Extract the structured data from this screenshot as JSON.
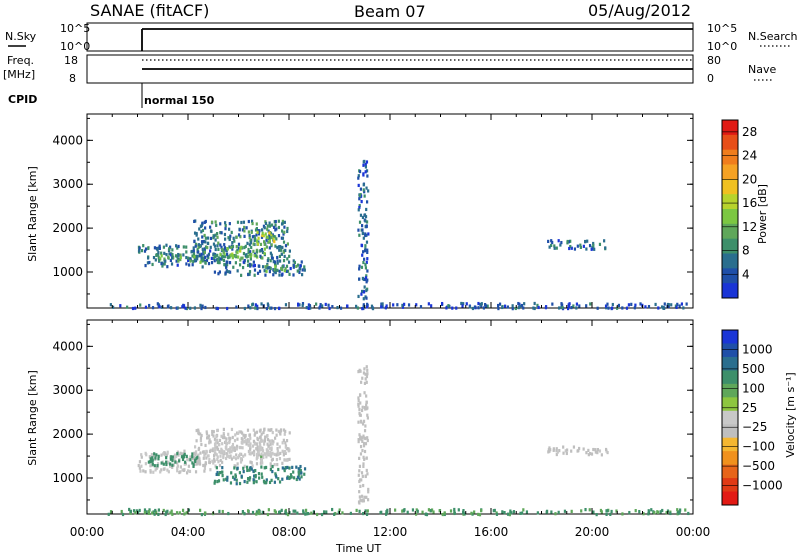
{
  "header": {
    "station": "SANAE (fitACF)",
    "beam": "Beam 07",
    "date": "05/Aug/2012"
  },
  "status_panels": {
    "nsky": {
      "label": "N.Sky",
      "left_ticks": [
        "10^5",
        "10^0"
      ],
      "right_ticks": [
        "10^5",
        "10^0"
      ],
      "right_label": "N.Search",
      "right_label_style": "dotted"
    },
    "freq": {
      "label_line1": "Freq.",
      "label_line2": "[MHz]",
      "left_ticks": [
        "18",
        "8"
      ],
      "right_ticks": [
        "80",
        "0"
      ],
      "right_label": "Nave",
      "right_label_style": "dotted"
    },
    "cpid": {
      "label": "CPID",
      "value": "normal 150"
    }
  },
  "colors": {
    "power_scale": [
      "#1a35d6",
      "#1f4fa8",
      "#2a6e8e",
      "#3d8f6a",
      "#5fa75a",
      "#7cc742",
      "#b7d32c",
      "#f0c020",
      "#f5a223",
      "#f07d1c",
      "#e84e18",
      "#e01a14"
    ],
    "velocity_scale": [
      "#1a35d6",
      "#1f4fa8",
      "#2a6e8e",
      "#3d8f6a",
      "#5fa75a",
      "#8dc63f",
      "#c8c8c8",
      "#bfbfbf",
      "#f5b731",
      "#f0911d",
      "#e7651a",
      "#e03a15",
      "#e21a14"
    ]
  },
  "chart_data": [
    {
      "type": "heatmap",
      "name": "power",
      "ylabel": "Slant Range [km]",
      "yticks": [
        "1000",
        "2000",
        "3000",
        "4000"
      ],
      "ylim": [
        180,
        4600
      ],
      "xlim": [
        0,
        24
      ],
      "colorbar_label": "Power [dB]",
      "colorbar_ticks": [
        "4",
        "8",
        "12",
        "16",
        "20",
        "24",
        "28"
      ],
      "colorbar_range": [
        0,
        30
      ],
      "regions": [
        {
          "x": [
            2.0,
            5.2
          ],
          "y": [
            1150,
            1650
          ],
          "value": 6
        },
        {
          "x": [
            2.8,
            4.6
          ],
          "y": [
            1250,
            1450
          ],
          "value": 10
        },
        {
          "x": [
            4.2,
            8.0
          ],
          "y": [
            1300,
            2200
          ],
          "value": 7
        },
        {
          "x": [
            6.6,
            7.4
          ],
          "y": [
            1650,
            1950
          ],
          "value": 14
        },
        {
          "x": [
            5.2,
            7.0
          ],
          "y": [
            1350,
            1600
          ],
          "value": 12
        },
        {
          "x": [
            5.0,
            8.6
          ],
          "y": [
            950,
            1300
          ],
          "value": 6
        },
        {
          "x": [
            7.0,
            8.4
          ],
          "y": [
            1050,
            1200
          ],
          "value": 11
        },
        {
          "x": [
            10.7,
            11.1
          ],
          "y": [
            400,
            3600
          ],
          "value": 5
        },
        {
          "x": [
            18.2,
            20.6
          ],
          "y": [
            1550,
            1750
          ],
          "value": 5
        },
        {
          "x": [
            0.8,
            23.8
          ],
          "y": [
            200,
            320
          ],
          "value": 4
        }
      ]
    },
    {
      "type": "heatmap",
      "name": "velocity",
      "ylabel": "Slant Range [km]",
      "yticks": [
        "1000",
        "2000",
        "3000",
        "4000"
      ],
      "ylim": [
        180,
        4600
      ],
      "xlim": [
        0,
        24
      ],
      "xticks": [
        "00:00",
        "04:00",
        "08:00",
        "12:00",
        "16:00",
        "20:00",
        "00:00"
      ],
      "xlabel": "Time UT",
      "colorbar_label": "Velocity [m s⁻¹]",
      "colorbar_ticks": [
        "1000",
        "500",
        "100",
        "25",
        "−25",
        "−100",
        "−500",
        "−1000"
      ],
      "regions": [
        {
          "x": [
            2.0,
            5.0
          ],
          "y": [
            1150,
            1650
          ],
          "value": -100
        },
        {
          "x": [
            2.4,
            4.4
          ],
          "y": [
            1300,
            1600
          ],
          "value": 60
        },
        {
          "x": [
            4.2,
            8.0
          ],
          "y": [
            1300,
            2150
          ],
          "value": -150
        },
        {
          "x": [
            5.0,
            7.6
          ],
          "y": [
            1450,
            1900
          ],
          "value": -60
        },
        {
          "x": [
            5.0,
            8.6
          ],
          "y": [
            900,
            1300
          ],
          "value": 80
        },
        {
          "x": [
            10.7,
            11.1
          ],
          "y": [
            400,
            3600
          ],
          "value": -300
        },
        {
          "x": [
            18.2,
            20.6
          ],
          "y": [
            1550,
            1750
          ],
          "value": -200
        },
        {
          "x": [
            0.8,
            23.8
          ],
          "y": [
            200,
            320
          ],
          "value": 30
        }
      ]
    }
  ]
}
